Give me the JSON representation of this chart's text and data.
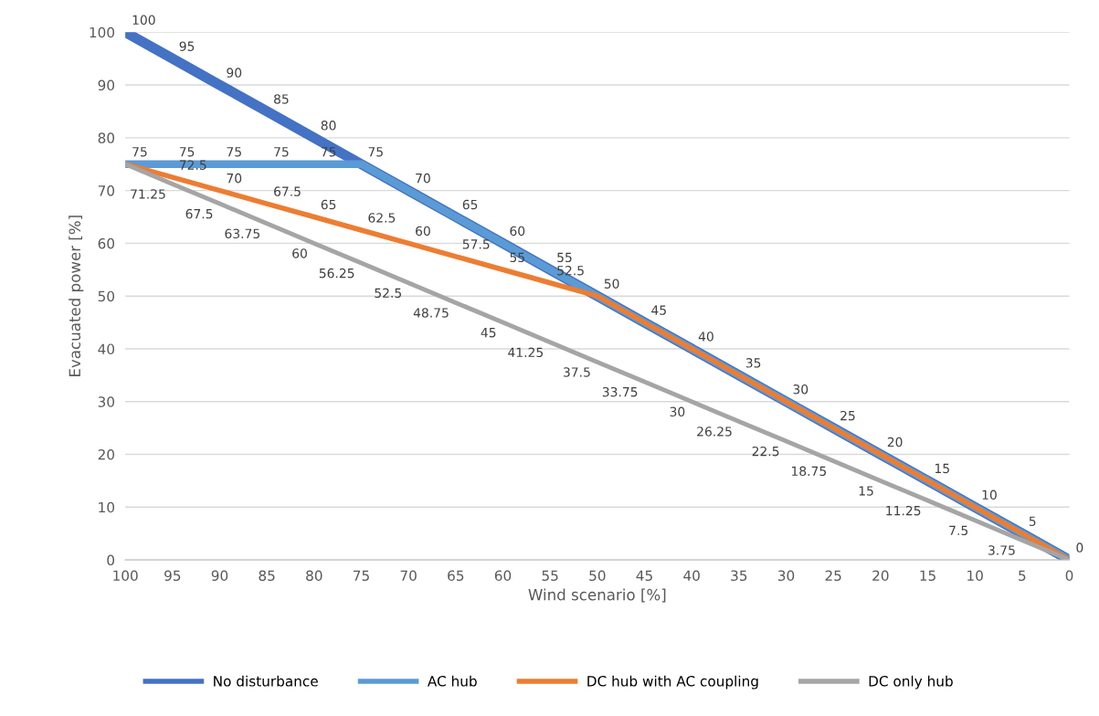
{
  "chart_data": {
    "type": "line",
    "xlabel": "Wind scenario [%]",
    "ylabel": "Evacuated power [%]",
    "categories": [
      "100",
      "95",
      "90",
      "85",
      "80",
      "75",
      "70",
      "65",
      "60",
      "55",
      "50",
      "45",
      "40",
      "35",
      "30",
      "25",
      "20",
      "15",
      "10",
      "5",
      "0"
    ],
    "series": [
      {
        "name": "No disturbance",
        "color": "#4472c4",
        "values": [
          100,
          95,
          90,
          85,
          80,
          75,
          70,
          65,
          60,
          55,
          50,
          45,
          40,
          35,
          30,
          25,
          20,
          15,
          10,
          5,
          0
        ],
        "value_labels": [
          "100",
          "95",
          "90",
          "85",
          "80",
          "75",
          "70",
          "65",
          "60",
          "55",
          "50",
          "45",
          "40",
          "35",
          "30",
          "25",
          "20",
          "15",
          "10",
          "5",
          "0"
        ]
      },
      {
        "name": "AC hub",
        "color": "#5b9bd5",
        "values": [
          75,
          75,
          75,
          75,
          75,
          75,
          70,
          65,
          60,
          55,
          50,
          45,
          40,
          35,
          30,
          25,
          20,
          15,
          10,
          5,
          0
        ],
        "value_labels": [
          "75",
          "75",
          "75",
          "75",
          "75",
          null,
          null,
          null,
          null,
          null,
          null,
          null,
          null,
          null,
          null,
          null,
          null,
          null,
          null,
          null,
          null
        ]
      },
      {
        "name": "DC hub with AC coupling",
        "color": "#ed7d31",
        "values": [
          75,
          72.5,
          70,
          67.5,
          65,
          62.5,
          60,
          57.5,
          55,
          52.5,
          50,
          45,
          40,
          35,
          30,
          25,
          20,
          15,
          10,
          5,
          0
        ],
        "value_labels": [
          null,
          "72.5",
          "70",
          "67.5",
          "65",
          "62.5",
          "60",
          "57.5",
          "55",
          "52.5",
          null,
          null,
          null,
          null,
          null,
          null,
          null,
          null,
          null,
          null,
          null
        ]
      },
      {
        "name": "DC only hub",
        "color": "#a5a5a5",
        "values": [
          75,
          71.25,
          67.5,
          63.75,
          60,
          56.25,
          52.5,
          48.75,
          45,
          41.25,
          37.5,
          33.75,
          30,
          26.25,
          22.5,
          18.75,
          15,
          11.25,
          7.5,
          3.75,
          0
        ],
        "value_labels": [
          null,
          "71.25",
          "67.5",
          "63.75",
          "60",
          "56.25",
          "52.5",
          "48.75",
          "45",
          "41.25",
          "37.5",
          "33.75",
          "30",
          "26.25",
          "22.5",
          "18.75",
          "15",
          "11.25",
          "7.5",
          "3.75",
          null
        ]
      }
    ],
    "ylim": [
      0,
      100
    ],
    "yticks": [
      0,
      10,
      20,
      30,
      40,
      50,
      60,
      70,
      80,
      90,
      100
    ],
    "grid": "y",
    "legend": "bottom",
    "marker": "none",
    "line_style": "solid"
  }
}
